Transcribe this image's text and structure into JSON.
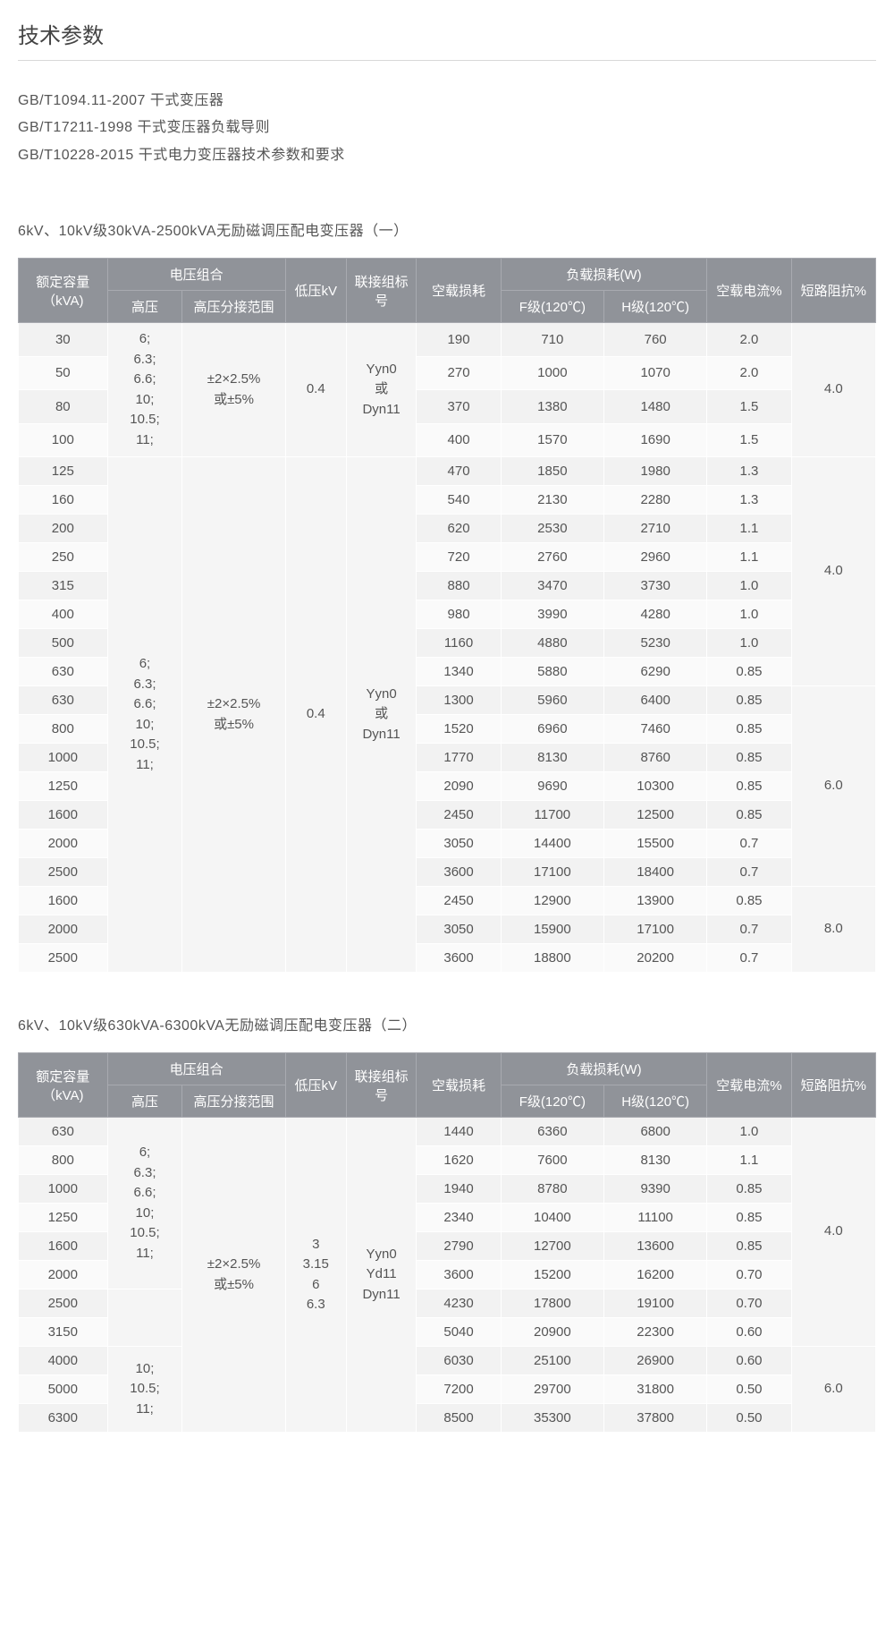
{
  "page_title": "技术参数",
  "standards": [
    "GB/T1094.11-2007 干式变压器",
    "GB/T17211-1998 干式变压器负载导则",
    "GB/T10228-2015 干式电力变压器技术参数和要求"
  ],
  "headers": {
    "capacity": "额定容量（kVA)",
    "voltage_group": "电压组合",
    "hv": "高压",
    "tap": "高压分接范围",
    "lv": "低压kV",
    "conn": "联接组标号",
    "noload": "空载损耗",
    "load_loss": "负载损耗(W)",
    "loss_f": "F级(120℃)",
    "loss_h": "H级(120℃)",
    "noload_current": "空载电流%",
    "impedance": "短路阻抗%"
  },
  "table1": {
    "title": "6kV、10kV级30kVA-2500kVA无励磁调压配电变压器（一）",
    "hv_text": "6;\n6.3;\n6.6;\n10;\n10.5;\n11;",
    "tap_text": "±2×2.5%\n或±5%",
    "lv_text": "0.4",
    "conn_text": "Yyn0\n或\nDyn11",
    "groups": [
      {
        "impedance": "4.0",
        "rows": [
          {
            "cap": "30",
            "nl": "190",
            "f": "710",
            "h": "760",
            "cur": "2.0"
          },
          {
            "cap": "50",
            "nl": "270",
            "f": "1000",
            "h": "1070",
            "cur": "2.0"
          },
          {
            "cap": "80",
            "nl": "370",
            "f": "1380",
            "h": "1480",
            "cur": "1.5"
          },
          {
            "cap": "100",
            "nl": "400",
            "f": "1570",
            "h": "1690",
            "cur": "1.5"
          }
        ]
      },
      {
        "impedance": "4.0",
        "rows": [
          {
            "cap": "125",
            "nl": "470",
            "f": "1850",
            "h": "1980",
            "cur": "1.3"
          },
          {
            "cap": "160",
            "nl": "540",
            "f": "2130",
            "h": "2280",
            "cur": "1.3"
          },
          {
            "cap": "200",
            "nl": "620",
            "f": "2530",
            "h": "2710",
            "cur": "1.1"
          },
          {
            "cap": "250",
            "nl": "720",
            "f": "2760",
            "h": "2960",
            "cur": "1.1"
          },
          {
            "cap": "315",
            "nl": "880",
            "f": "3470",
            "h": "3730",
            "cur": "1.0"
          },
          {
            "cap": "400",
            "nl": "980",
            "f": "3990",
            "h": "4280",
            "cur": "1.0"
          },
          {
            "cap": "500",
            "nl": "1160",
            "f": "4880",
            "h": "5230",
            "cur": "1.0"
          },
          {
            "cap": "630",
            "nl": "1340",
            "f": "5880",
            "h": "6290",
            "cur": "0.85"
          }
        ]
      },
      {
        "impedance": "6.0",
        "rows": [
          {
            "cap": "630",
            "nl": "1300",
            "f": "5960",
            "h": "6400",
            "cur": "0.85"
          },
          {
            "cap": "800",
            "nl": "1520",
            "f": "6960",
            "h": "7460",
            "cur": "0.85"
          },
          {
            "cap": "1000",
            "nl": "1770",
            "f": "8130",
            "h": "8760",
            "cur": "0.85"
          },
          {
            "cap": "1250",
            "nl": "2090",
            "f": "9690",
            "h": "10300",
            "cur": "0.85"
          },
          {
            "cap": "1600",
            "nl": "2450",
            "f": "11700",
            "h": "12500",
            "cur": "0.85"
          },
          {
            "cap": "2000",
            "nl": "3050",
            "f": "14400",
            "h": "15500",
            "cur": "0.7"
          },
          {
            "cap": "2500",
            "nl": "3600",
            "f": "17100",
            "h": "18400",
            "cur": "0.7"
          }
        ]
      },
      {
        "impedance": "8.0",
        "rows": [
          {
            "cap": "1600",
            "nl": "2450",
            "f": "12900",
            "h": "13900",
            "cur": "0.85"
          },
          {
            "cap": "2000",
            "nl": "3050",
            "f": "15900",
            "h": "17100",
            "cur": "0.7"
          },
          {
            "cap": "2500",
            "nl": "3600",
            "f": "18800",
            "h": "20200",
            "cur": "0.7"
          }
        ]
      }
    ]
  },
  "table2": {
    "title": "6kV、10kV级630kVA-6300kVA无励磁调压配电变压器（二）",
    "hv_text_a": "6;\n6.3;\n6.6;\n10;\n10.5;\n11;",
    "hv_text_b": "10;\n10.5;\n11;",
    "tap_text": "±2×2.5%\n或±5%",
    "lv_text": "3\n3.15\n6\n6.3",
    "conn_text": "Yyn0\nYd11\nDyn11",
    "groups": [
      {
        "impedance": "4.0",
        "rows": [
          {
            "cap": "630",
            "nl": "1440",
            "f": "6360",
            "h": "6800",
            "cur": "1.0"
          },
          {
            "cap": "800",
            "nl": "1620",
            "f": "7600",
            "h": "8130",
            "cur": "1.1"
          },
          {
            "cap": "1000",
            "nl": "1940",
            "f": "8780",
            "h": "9390",
            "cur": "0.85"
          },
          {
            "cap": "1250",
            "nl": "2340",
            "f": "10400",
            "h": "11100",
            "cur": "0.85"
          },
          {
            "cap": "1600",
            "nl": "2790",
            "f": "12700",
            "h": "13600",
            "cur": "0.85"
          },
          {
            "cap": "2000",
            "nl": "3600",
            "f": "15200",
            "h": "16200",
            "cur": "0.70"
          },
          {
            "cap": "2500",
            "nl": "4230",
            "f": "17800",
            "h": "19100",
            "cur": "0.70"
          },
          {
            "cap": "3150",
            "nl": "5040",
            "f": "20900",
            "h": "22300",
            "cur": "0.60"
          }
        ]
      },
      {
        "impedance": "6.0",
        "rows": [
          {
            "cap": "4000",
            "nl": "6030",
            "f": "25100",
            "h": "26900",
            "cur": "0.60"
          },
          {
            "cap": "5000",
            "nl": "7200",
            "f": "29700",
            "h": "31800",
            "cur": "0.50"
          },
          {
            "cap": "6300",
            "nl": "8500",
            "f": "35300",
            "h": "37800",
            "cur": "0.50"
          }
        ]
      }
    ]
  }
}
